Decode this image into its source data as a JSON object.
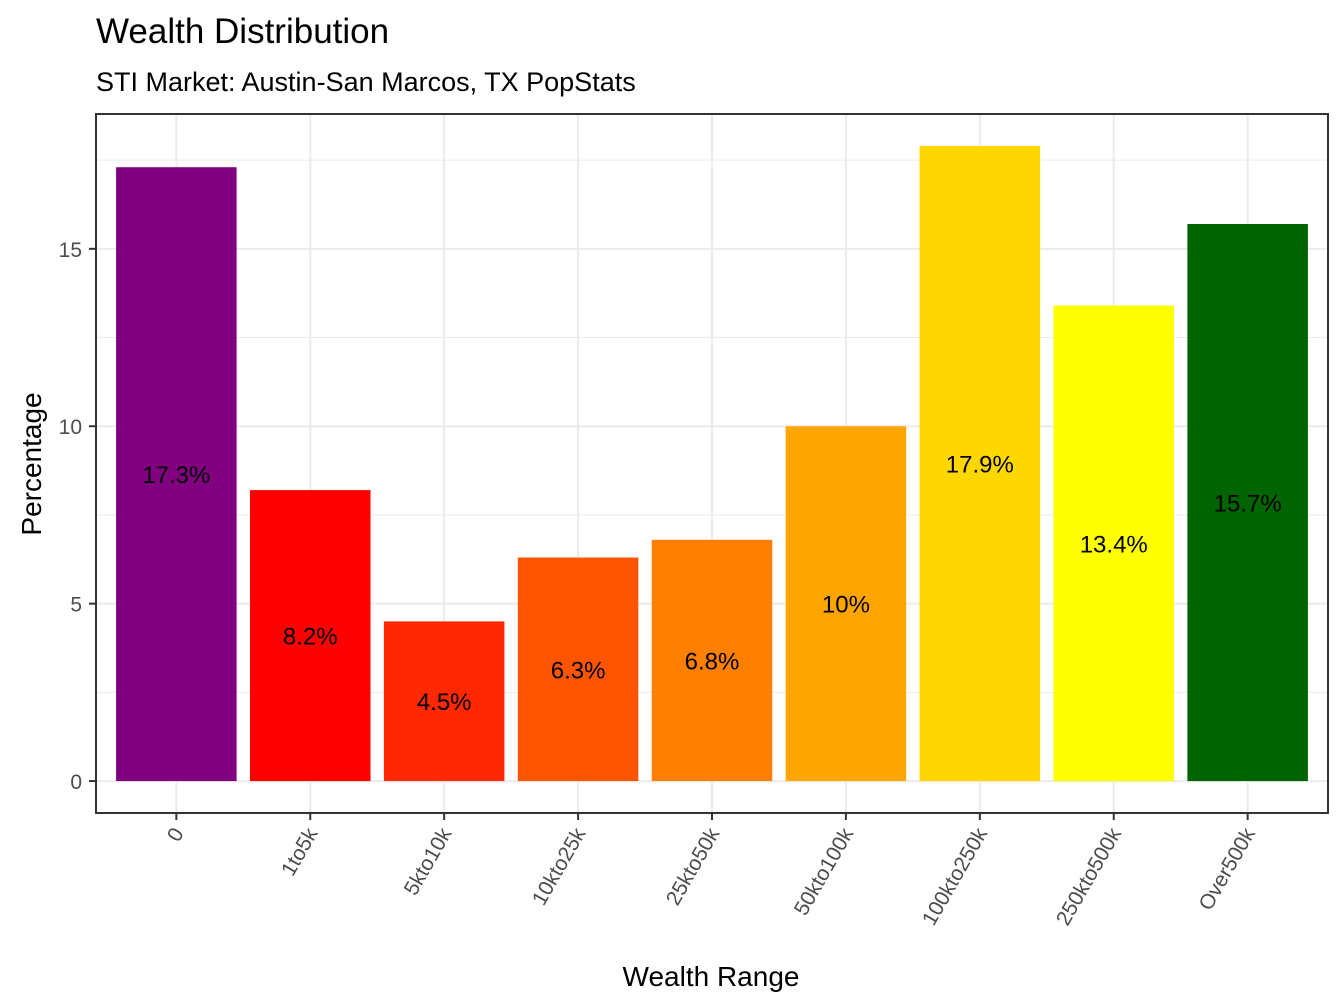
{
  "chart_data": {
    "type": "bar",
    "title": "Wealth Distribution",
    "subtitle": "STI Market: Austin-San Marcos, TX PopStats",
    "xlabel": "Wealth Range",
    "ylabel": "Percentage",
    "categories": [
      "0",
      "1to5k",
      "5kto10k",
      "10kto25k",
      "25kto50k",
      "50kto100k",
      "100kto250k",
      "250kto500k",
      "Over500k"
    ],
    "values": [
      17.3,
      8.2,
      4.5,
      6.3,
      6.8,
      10,
      17.9,
      13.4,
      15.7
    ],
    "value_labels": [
      "17.3%",
      "8.2%",
      "4.5%",
      "6.3%",
      "6.8%",
      "10%",
      "17.9%",
      "13.4%",
      "15.7%"
    ],
    "colors": [
      "#800080",
      "#ff0000",
      "#ff2800",
      "#ff5500",
      "#ff7f00",
      "#ffa500",
      "#ffd700",
      "#ffff00",
      "#006400"
    ],
    "y_ticks": [
      0,
      5,
      10,
      15
    ],
    "y_tick_labels": [
      "0",
      "5",
      "10",
      "15"
    ],
    "ylim": [
      -0.9,
      18.8
    ],
    "grid": true,
    "legend": "none",
    "theme": "bw",
    "label_position": "middle"
  }
}
